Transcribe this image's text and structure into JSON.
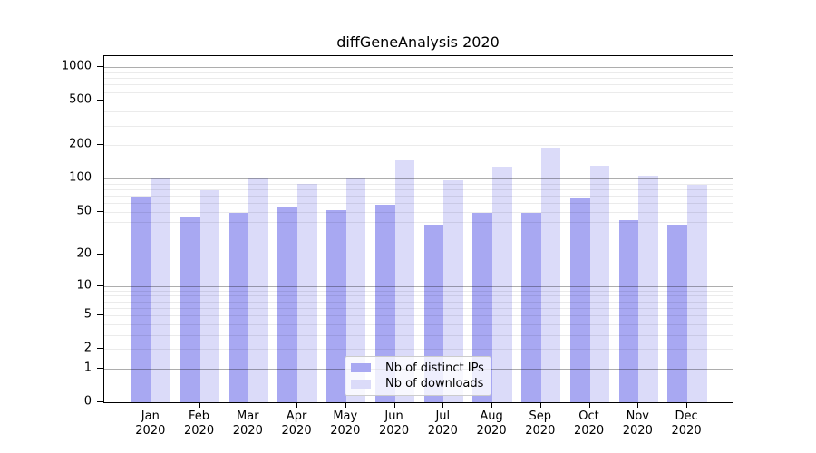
{
  "chart_data": {
    "type": "bar",
    "title": "diffGeneAnalysis 2020",
    "categories": [
      "Jan 2020",
      "Feb 2020",
      "Mar 2020",
      "Apr 2020",
      "May 2020",
      "Jun 2020",
      "Jul 2020",
      "Aug 2020",
      "Sep 2020",
      "Oct 2020",
      "Nov 2020",
      "Dec 2020"
    ],
    "series": [
      {
        "name": "Nb of distinct IPs",
        "color": "#a8a8f2",
        "values": [
          68,
          44,
          49,
          55,
          52,
          58,
          38,
          49,
          49,
          66,
          42,
          38
        ]
      },
      {
        "name": "Nb of downloads",
        "color": "#dbdbf9",
        "values": [
          103,
          79,
          100,
          89,
          103,
          145,
          97,
          127,
          190,
          131,
          106,
          88
        ]
      }
    ],
    "xlabel": "",
    "ylabel": "",
    "yscale": "log1p",
    "y_ticks": [
      0,
      1,
      2,
      5,
      10,
      20,
      50,
      100,
      200,
      500,
      1000
    ],
    "grid_major_values": [
      1,
      10,
      100,
      1000
    ],
    "ylim": [
      0,
      1260
    ],
    "grid": true,
    "legend_position": "lower center"
  },
  "colors": {
    "grid_minor": "rgba(0,0,0,0.08)",
    "grid_major": "rgba(0,0,0,0.32)",
    "axis": "#000000",
    "background": "#ffffff"
  }
}
